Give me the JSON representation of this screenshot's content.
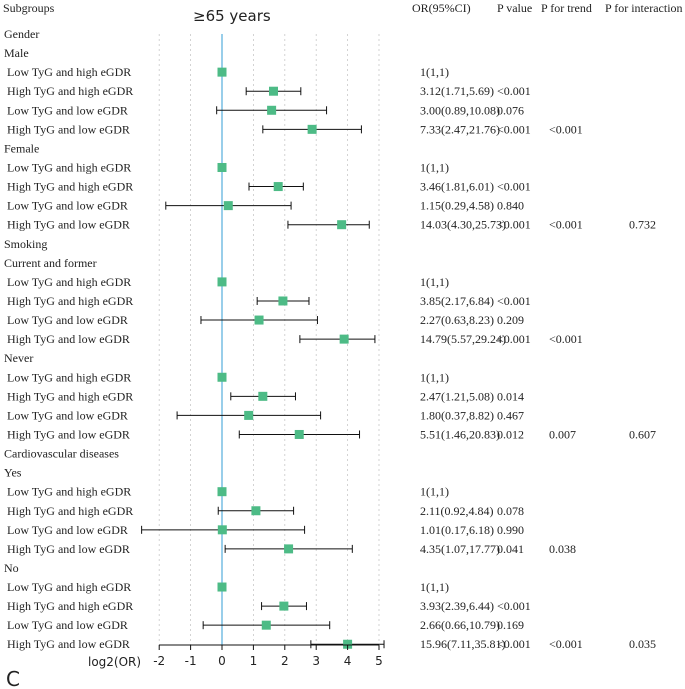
{
  "chart_data": {
    "type": "forest",
    "title": "≥65 years",
    "panel_label": "C",
    "xlabel": "log2(OR)",
    "xlim": [
      -2,
      5
    ],
    "xticks": [
      -2,
      -1,
      0,
      1,
      2,
      3,
      4,
      5
    ],
    "reference_line": 0,
    "columns": {
      "subgroups": "Subgroups",
      "or_ci": "OR(95%CI)",
      "p_value": "P value",
      "p_trend": "P for trend",
      "p_interaction": "P for interaction"
    },
    "rows": [
      {
        "label": "Gender",
        "kind": "group"
      },
      {
        "label": "Male",
        "kind": "subgroup"
      },
      {
        "label": "Low TyG and high eGDR",
        "kind": "item",
        "or_text": "1(1,1)",
        "log2or": 0,
        "lo": 0,
        "hi": 0,
        "p": "",
        "p_trend": "",
        "p_int": "",
        "ref": true
      },
      {
        "label": "High TyG and high eGDR",
        "kind": "item",
        "or_text": "3.12(1.71,5.69)",
        "log2or": 1.64,
        "lo": 0.77,
        "hi": 2.51,
        "p": "<0.001",
        "p_trend": "",
        "p_int": ""
      },
      {
        "label": "Low TyG and low eGDR",
        "kind": "item",
        "or_text": "3.00(0.89,10.08)",
        "log2or": 1.58,
        "lo": -0.17,
        "hi": 3.33,
        "p": "0.076",
        "p_trend": "",
        "p_int": ""
      },
      {
        "label": "High TyG and low eGDR",
        "kind": "item",
        "or_text": "7.33(2.47,21.76)",
        "log2or": 2.87,
        "lo": 1.3,
        "hi": 4.44,
        "p": "<0.001",
        "p_trend": "<0.001",
        "p_int": ""
      },
      {
        "label": "Female",
        "kind": "subgroup"
      },
      {
        "label": "Low TyG and high eGDR",
        "kind": "item",
        "or_text": "1(1,1)",
        "log2or": 0,
        "lo": 0,
        "hi": 0,
        "p": "",
        "p_trend": "",
        "p_int": "",
        "ref": true
      },
      {
        "label": "High TyG and high eGDR",
        "kind": "item",
        "or_text": "3.46(1.81,6.01)",
        "log2or": 1.79,
        "lo": 0.86,
        "hi": 2.59,
        "p": "<0.001",
        "p_trend": "",
        "p_int": ""
      },
      {
        "label": "Low TyG and low eGDR",
        "kind": "item",
        "or_text": "1.15(0.29,4.58)",
        "log2or": 0.2,
        "lo": -1.79,
        "hi": 2.2,
        "p": "0.840",
        "p_trend": "",
        "p_int": ""
      },
      {
        "label": "High TyG and low eGDR",
        "kind": "item",
        "or_text": "14.03(4.30,25.73)",
        "log2or": 3.81,
        "lo": 2.1,
        "hi": 4.69,
        "p": "<0.001",
        "p_trend": "<0.001",
        "p_int": "0.732"
      },
      {
        "label": "Smoking",
        "kind": "group"
      },
      {
        "label": "Current and former",
        "kind": "subgroup"
      },
      {
        "label": "Low TyG and high eGDR",
        "kind": "item",
        "or_text": "1(1,1)",
        "log2or": 0,
        "lo": 0,
        "hi": 0,
        "p": "",
        "p_trend": "",
        "p_int": "",
        "ref": true
      },
      {
        "label": "High TyG and high eGDR",
        "kind": "item",
        "or_text": "3.85(2.17,6.84)",
        "log2or": 1.94,
        "lo": 1.12,
        "hi": 2.77,
        "p": "<0.001",
        "p_trend": "",
        "p_int": ""
      },
      {
        "label": "Low TyG and low eGDR",
        "kind": "item",
        "or_text": "2.27(0.63,8.23)",
        "log2or": 1.18,
        "lo": -0.67,
        "hi": 3.04,
        "p": "0.209",
        "p_trend": "",
        "p_int": ""
      },
      {
        "label": "High TyG and low eGDR",
        "kind": "item",
        "or_text": "14.79(5.57,29.24)",
        "log2or": 3.89,
        "lo": 2.48,
        "hi": 4.87,
        "p": "<0.001",
        "p_trend": "<0.001",
        "p_int": ""
      },
      {
        "label": "Never",
        "kind": "subgroup"
      },
      {
        "label": "Low TyG and high eGDR",
        "kind": "item",
        "or_text": "1(1,1)",
        "log2or": 0,
        "lo": 0,
        "hi": 0,
        "p": "",
        "p_trend": "",
        "p_int": "",
        "ref": true
      },
      {
        "label": "High TyG and high eGDR",
        "kind": "item",
        "or_text": "2.47(1.21,5.08)",
        "log2or": 1.3,
        "lo": 0.28,
        "hi": 2.34,
        "p": "0.014",
        "p_trend": "",
        "p_int": ""
      },
      {
        "label": "Low TyG and low eGDR",
        "kind": "item",
        "or_text": "1.80(0.37,8.82)",
        "log2or": 0.85,
        "lo": -1.43,
        "hi": 3.14,
        "p": "0.467",
        "p_trend": "",
        "p_int": ""
      },
      {
        "label": "High TyG and low eGDR",
        "kind": "item",
        "or_text": "5.51(1.46,20.83)",
        "log2or": 2.46,
        "lo": 0.55,
        "hi": 4.38,
        "p": "0.012",
        "p_trend": "0.007",
        "p_int": "0.607"
      },
      {
        "label": "Cardiovascular diseases",
        "kind": "group"
      },
      {
        "label": "Yes",
        "kind": "subgroup"
      },
      {
        "label": "Low TyG and high eGDR",
        "kind": "item",
        "or_text": "1(1,1)",
        "log2or": 0,
        "lo": 0,
        "hi": 0,
        "p": "",
        "p_trend": "",
        "p_int": "",
        "ref": true
      },
      {
        "label": "High TyG and high eGDR",
        "kind": "item",
        "or_text": "2.11(0.92,4.84)",
        "log2or": 1.08,
        "lo": -0.12,
        "hi": 2.28,
        "p": "0.078",
        "p_trend": "",
        "p_int": ""
      },
      {
        "label": "Low TyG and low eGDR",
        "kind": "item",
        "or_text": "1.01(0.17,6.18)",
        "log2or": 0.01,
        "lo": -2.56,
        "hi": 2.63,
        "p": "0.990",
        "p_trend": "",
        "p_int": ""
      },
      {
        "label": "High TyG and low eGDR",
        "kind": "item",
        "or_text": "4.35(1.07,17.77)",
        "log2or": 2.12,
        "lo": 0.1,
        "hi": 4.15,
        "p": "0.041",
        "p_trend": "0.038",
        "p_int": ""
      },
      {
        "label": "No",
        "kind": "subgroup"
      },
      {
        "label": "Low TyG and high eGDR",
        "kind": "item",
        "or_text": "1(1,1)",
        "log2or": 0,
        "lo": 0,
        "hi": 0,
        "p": "",
        "p_trend": "",
        "p_int": "",
        "ref": true
      },
      {
        "label": "High TyG and high eGDR",
        "kind": "item",
        "or_text": "3.93(2.39,6.44)",
        "log2or": 1.97,
        "lo": 1.26,
        "hi": 2.69,
        "p": "<0.001",
        "p_trend": "",
        "p_int": ""
      },
      {
        "label": "Low TyG and low eGDR",
        "kind": "item",
        "or_text": "2.66(0.66,10.79)",
        "log2or": 1.41,
        "lo": -0.6,
        "hi": 3.43,
        "p": "0.169",
        "p_trend": "",
        "p_int": ""
      },
      {
        "label": "High TyG and low eGDR",
        "kind": "item",
        "or_text": "15.96(7.11,35.81)",
        "log2or": 4.0,
        "lo": 2.83,
        "hi": 5.16,
        "p": "<0.001",
        "p_trend": "<0.001",
        "p_int": "0.035"
      }
    ]
  },
  "colors": {
    "marker": "#4dbb86",
    "reference_line": "#55aedb",
    "grid": "#c8c8c8",
    "text": "#222222"
  }
}
